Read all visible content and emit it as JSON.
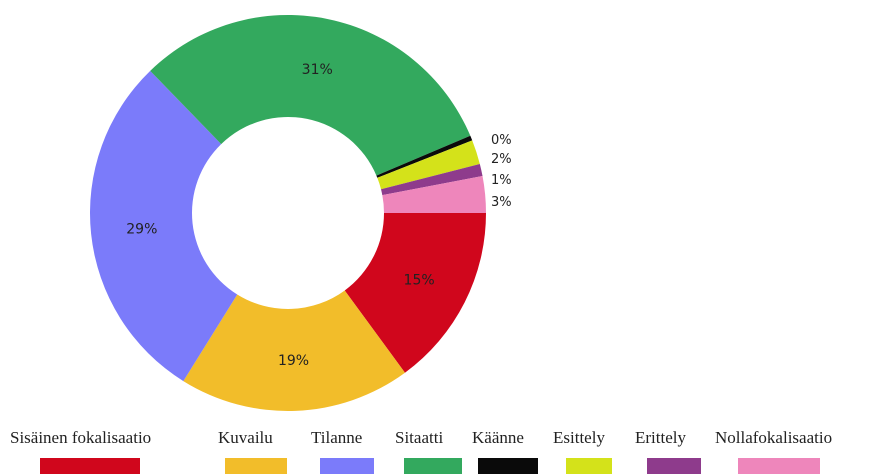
{
  "chart_data": {
    "type": "pie",
    "donut": true,
    "title": "",
    "series": [
      {
        "label": "Sisäinen fokalisaatio",
        "value": 15,
        "display": "15%",
        "color": "#d0061c",
        "label_pos": "inside"
      },
      {
        "label": "Kuvailu",
        "value": 19,
        "display": "19%",
        "color": "#f2bd2a",
        "label_pos": "inside"
      },
      {
        "label": "Tilanne",
        "value": 29,
        "display": "29%",
        "color": "#7b7bfa",
        "label_pos": "inside"
      },
      {
        "label": "Sitaatti",
        "value": 31,
        "display": "31%",
        "color": "#33a95e",
        "label_pos": "inside"
      },
      {
        "label": "Käänne",
        "value": 0.4,
        "display": "0%",
        "color": "#0a0a0a",
        "label_pos": "outside"
      },
      {
        "label": "Esittely",
        "value": 2,
        "display": "2%",
        "color": "#d4e21a",
        "label_pos": "outside"
      },
      {
        "label": "Erittely",
        "value": 1,
        "display": "1%",
        "color": "#8e3b8c",
        "label_pos": "outside"
      },
      {
        "label": "Nollafokalisaatio",
        "value": 3,
        "display": "3%",
        "color": "#ee86bb",
        "label_pos": "outside"
      }
    ],
    "legend_position": "bottom"
  }
}
